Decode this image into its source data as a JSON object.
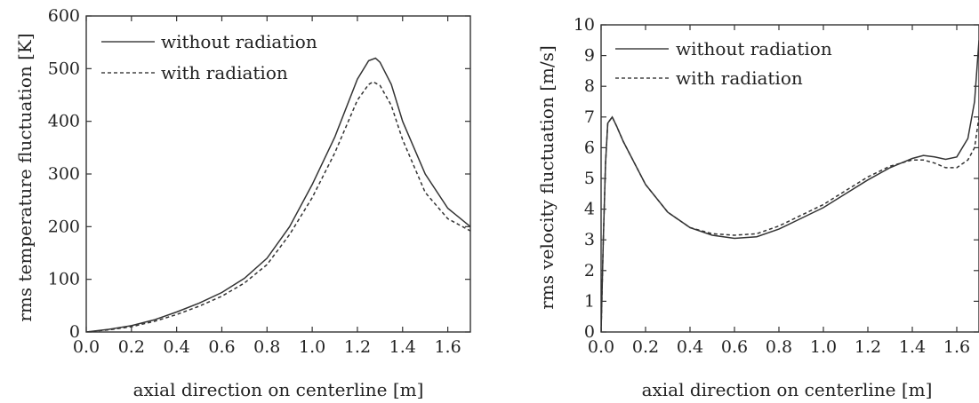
{
  "chart_data": [
    {
      "type": "line",
      "title": "",
      "xlabel": "axial direction on centerline [m]",
      "ylabel": "rms temperature fluctuation [K]",
      "xlim": [
        0.0,
        1.7
      ],
      "ylim": [
        0,
        600
      ],
      "xticks": [
        0.0,
        0.2,
        0.4,
        0.6,
        0.8,
        1.0,
        1.2,
        1.4,
        1.6
      ],
      "yticks": [
        0,
        100,
        200,
        300,
        400,
        500,
        600
      ],
      "legend_position": "top-left",
      "series": [
        {
          "name": "without radiation",
          "style": "solid",
          "x": [
            0.0,
            0.1,
            0.2,
            0.3,
            0.4,
            0.5,
            0.6,
            0.7,
            0.8,
            0.9,
            1.0,
            1.1,
            1.2,
            1.25,
            1.28,
            1.3,
            1.35,
            1.4,
            1.5,
            1.6,
            1.7
          ],
          "y": [
            0,
            5,
            12,
            23,
            38,
            55,
            75,
            102,
            140,
            200,
            280,
            370,
            480,
            515,
            520,
            512,
            470,
            400,
            300,
            235,
            200
          ]
        },
        {
          "name": "with radiation",
          "style": "dashed",
          "x": [
            0.0,
            0.1,
            0.2,
            0.3,
            0.4,
            0.5,
            0.6,
            0.7,
            0.8,
            0.9,
            1.0,
            1.1,
            1.2,
            1.25,
            1.27,
            1.3,
            1.35,
            1.4,
            1.5,
            1.6,
            1.7
          ],
          "y": [
            0,
            4,
            10,
            20,
            33,
            49,
            68,
            93,
            128,
            185,
            255,
            340,
            440,
            470,
            475,
            468,
            430,
            365,
            265,
            215,
            192
          ]
        }
      ]
    },
    {
      "type": "line",
      "title": "",
      "xlabel": "axial direction on centerline [m]",
      "ylabel": "rms velocity  fluctuation [m/s]",
      "xlim": [
        0.0,
        1.7
      ],
      "ylim": [
        0,
        10
      ],
      "xticks": [
        0.0,
        0.2,
        0.4,
        0.6,
        0.8,
        1.0,
        1.2,
        1.4,
        1.6
      ],
      "yticks": [
        0,
        1,
        2,
        3,
        4,
        5,
        6,
        7,
        8,
        9,
        10
      ],
      "legend_position": "top-left",
      "series": [
        {
          "name": "without radiation",
          "style": "solid",
          "x": [
            0.0,
            0.01,
            0.02,
            0.03,
            0.05,
            0.07,
            0.1,
            0.15,
            0.2,
            0.3,
            0.4,
            0.5,
            0.6,
            0.7,
            0.8,
            0.9,
            1.0,
            1.1,
            1.2,
            1.3,
            1.4,
            1.45,
            1.5,
            1.55,
            1.6,
            1.65,
            1.68,
            1.7
          ],
          "y": [
            0.0,
            3.0,
            5.5,
            6.8,
            7.0,
            6.7,
            6.2,
            5.5,
            4.8,
            3.9,
            3.4,
            3.15,
            3.05,
            3.1,
            3.35,
            3.7,
            4.05,
            4.5,
            4.95,
            5.35,
            5.65,
            5.75,
            5.7,
            5.62,
            5.7,
            6.3,
            7.5,
            9.5
          ]
        },
        {
          "name": "with radiation",
          "style": "dashed",
          "x": [
            0.0,
            0.01,
            0.02,
            0.03,
            0.05,
            0.07,
            0.1,
            0.15,
            0.2,
            0.3,
            0.4,
            0.5,
            0.6,
            0.7,
            0.8,
            0.9,
            1.0,
            1.1,
            1.2,
            1.3,
            1.4,
            1.45,
            1.5,
            1.55,
            1.6,
            1.65,
            1.68,
            1.7
          ],
          "y": [
            0.0,
            3.0,
            5.5,
            6.8,
            7.0,
            6.7,
            6.2,
            5.5,
            4.8,
            3.9,
            3.4,
            3.2,
            3.15,
            3.2,
            3.45,
            3.8,
            4.15,
            4.6,
            5.05,
            5.4,
            5.6,
            5.6,
            5.5,
            5.35,
            5.35,
            5.6,
            6.0,
            7.0
          ]
        }
      ]
    }
  ]
}
